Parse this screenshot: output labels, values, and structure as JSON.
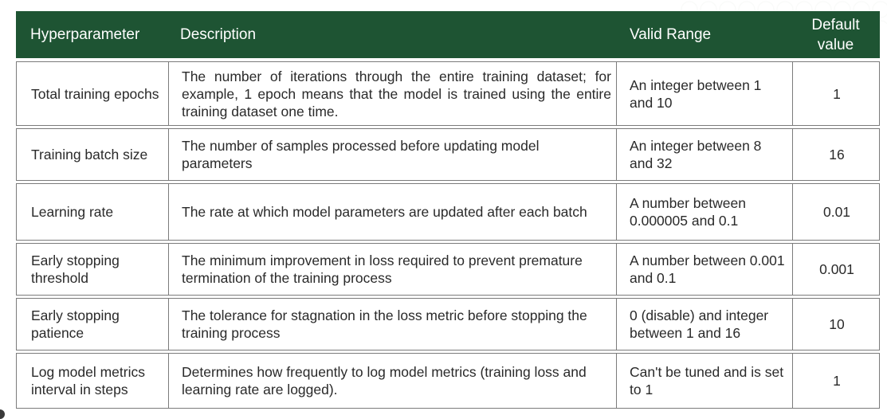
{
  "table": {
    "headers": [
      "Hyperparameter",
      "Description",
      "Valid Range",
      "Default value"
    ],
    "rows": [
      {
        "hyperparameter": "Total training epochs",
        "description": "The number of iterations through the entire training dataset; for example, 1 epoch means that the model is trained using the entire training dataset one time.",
        "valid_range": "An integer between 1 and 10",
        "default_value": "1"
      },
      {
        "hyperparameter": "Training batch size",
        "description": "The number of samples processed before updating model parameters",
        "valid_range": "An integer between 8 and 32",
        "default_value": "16"
      },
      {
        "hyperparameter": "Learning rate",
        "description": "The rate at which model parameters are updated after each batch",
        "valid_range": "A number between 0.000005 and 0.1",
        "default_value": "0.01"
      },
      {
        "hyperparameter": "Early stopping threshold",
        "description": "The minimum improvement in loss required to prevent premature termination of the training process",
        "valid_range": "A number between 0.001 and 0.1",
        "default_value": "0.001"
      },
      {
        "hyperparameter": "Early stopping patience",
        "description": "The tolerance for stagnation in the loss metric before stopping the training process",
        "valid_range": "0 (disable) and integer between 1 and 16",
        "default_value": "10"
      },
      {
        "hyperparameter": "Log model metrics interval in steps",
        "description": "Determines how frequently to log model metrics (training loss and learning rate are logged).",
        "valid_range": "Can't be tuned and is set to 1",
        "default_value": "1"
      }
    ]
  }
}
